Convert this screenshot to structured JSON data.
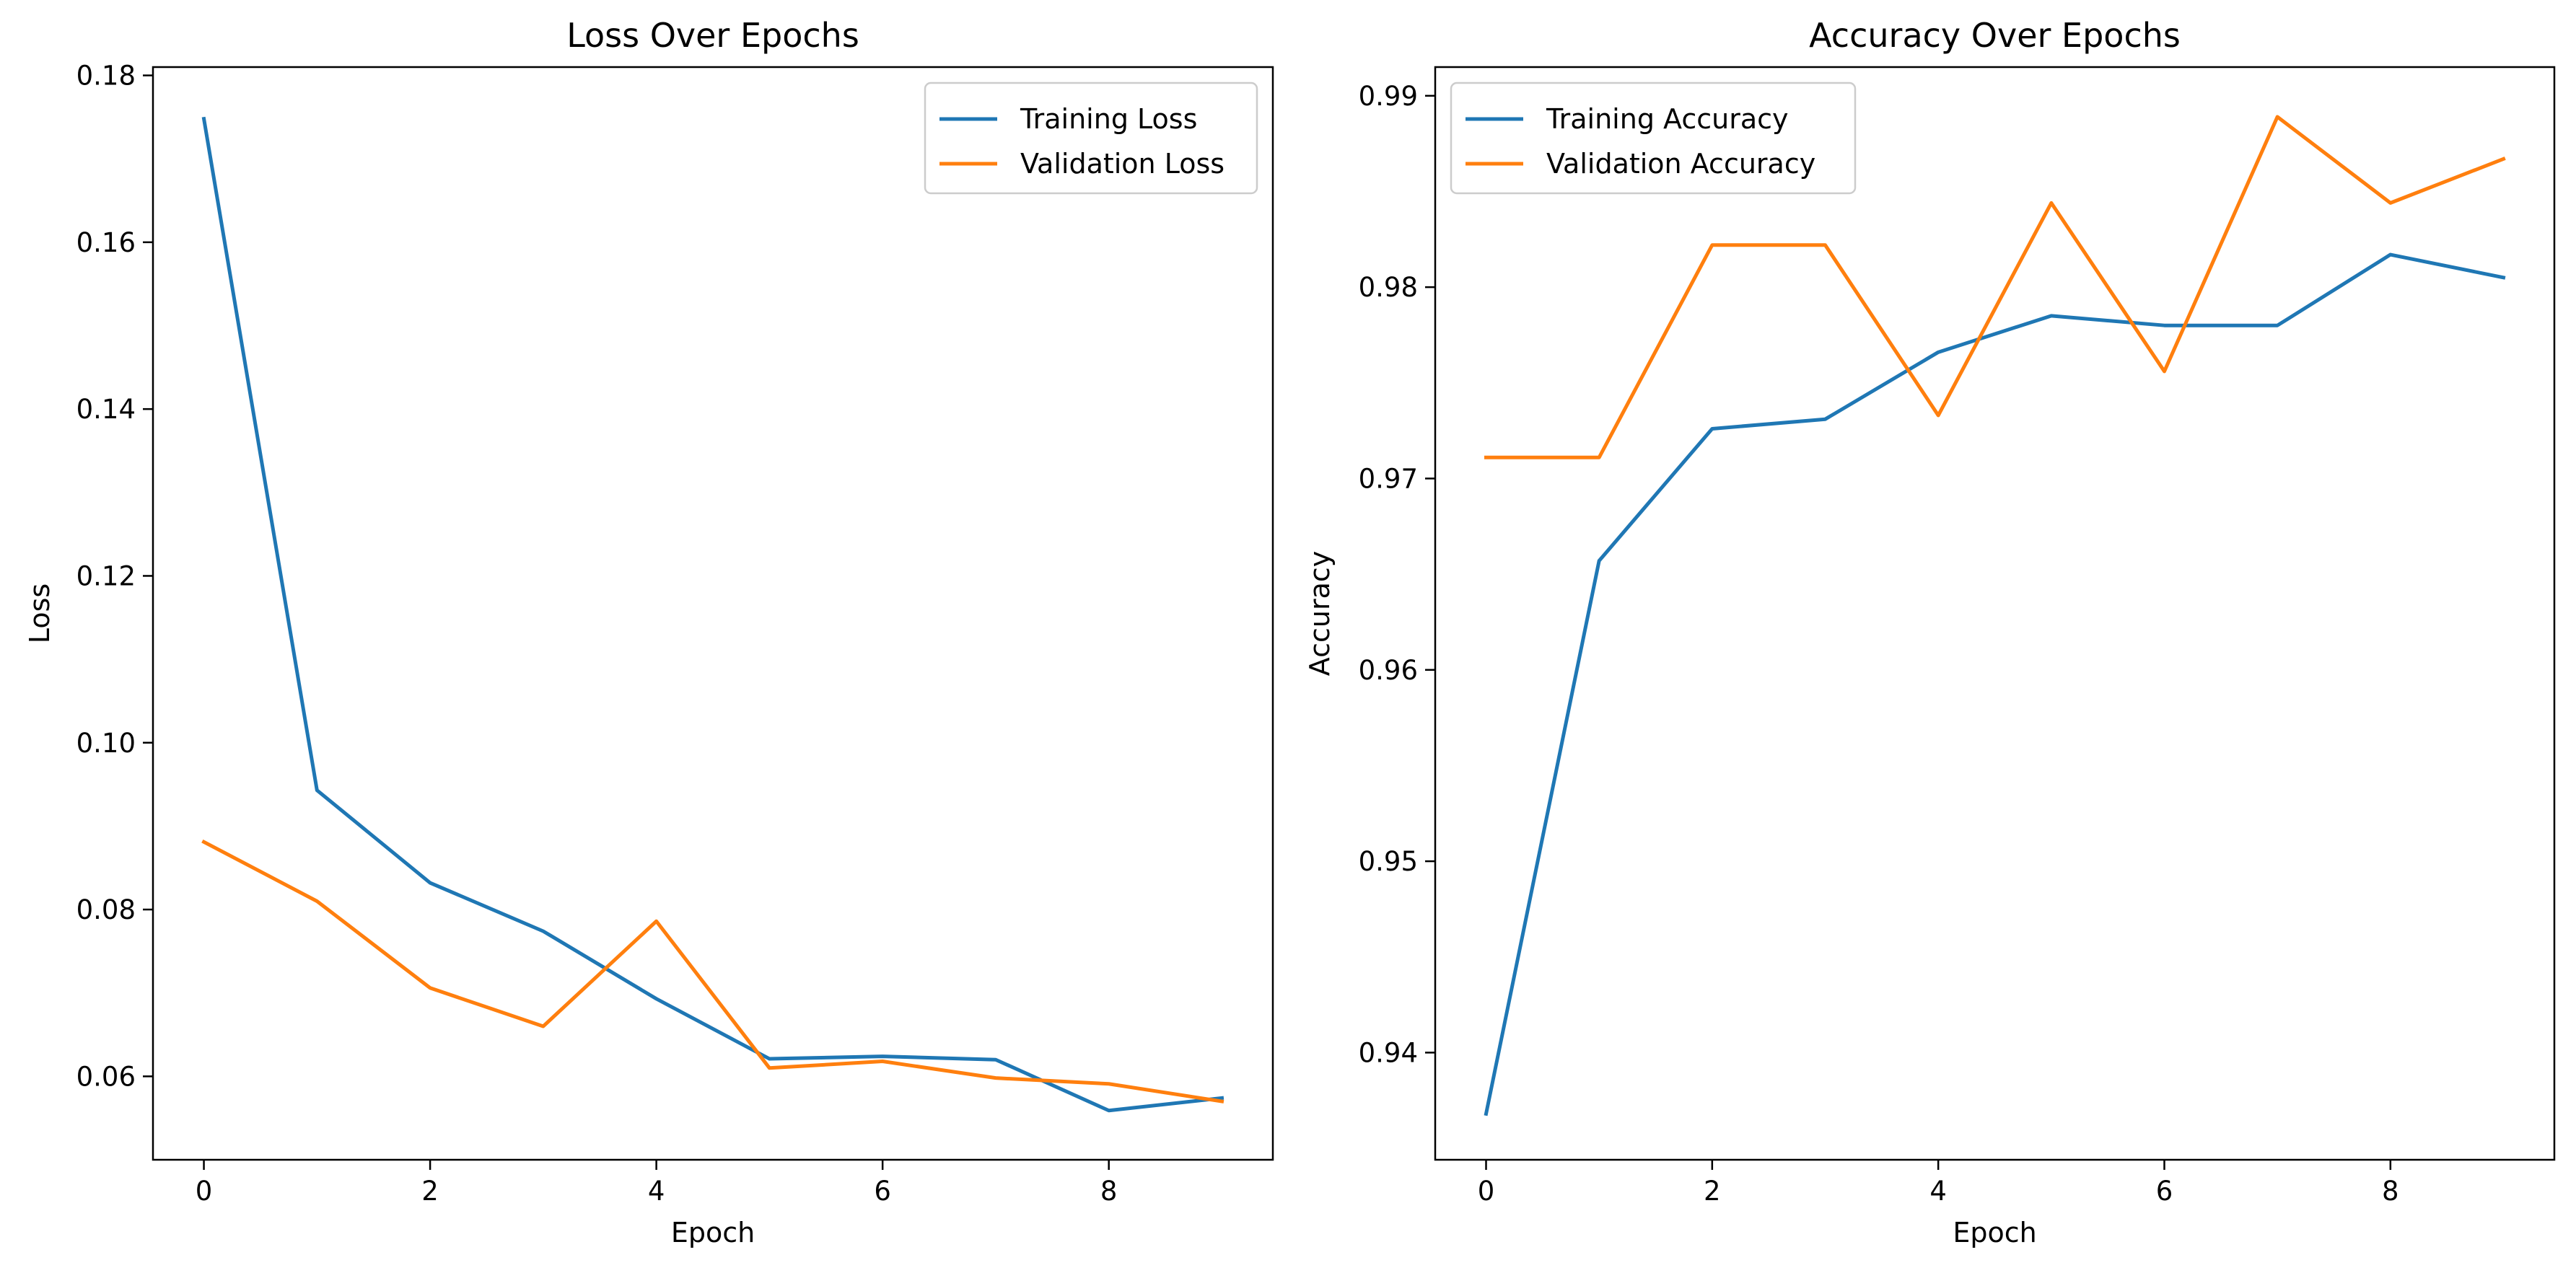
{
  "chart_data": [
    {
      "type": "line",
      "title": "Loss Over Epochs",
      "xlabel": "Epoch",
      "ylabel": "Loss",
      "xlim": [
        -0.45,
        9.45
      ],
      "ylim": [
        0.05,
        0.181
      ],
      "xticks": [
        0,
        2,
        4,
        6,
        8
      ],
      "xtick_labels": [
        "0",
        "2",
        "4",
        "6",
        "8"
      ],
      "yticks": [
        0.06,
        0.08,
        0.1,
        0.12,
        0.14,
        0.16,
        0.18
      ],
      "ytick_labels": [
        "0.06",
        "0.08",
        "0.10",
        "0.12",
        "0.14",
        "0.16",
        "0.18"
      ],
      "legend_position": "top-right",
      "grid": false,
      "x": [
        0,
        1,
        2,
        3,
        4,
        5,
        6,
        7,
        8,
        9
      ],
      "series": [
        {
          "name": "Training Loss",
          "color": "#1f77b4",
          "values": [
            0.1748,
            0.0943,
            0.0832,
            0.0774,
            0.0693,
            0.0621,
            0.0624,
            0.062,
            0.0559,
            0.0574
          ]
        },
        {
          "name": "Validation Loss",
          "color": "#ff7f0e",
          "values": [
            0.0881,
            0.081,
            0.0706,
            0.066,
            0.0786,
            0.061,
            0.0618,
            0.0598,
            0.0591,
            0.057
          ]
        }
      ]
    },
    {
      "type": "line",
      "title": "Accuracy Over Epochs",
      "xlabel": "Epoch",
      "ylabel": "Accuracy",
      "xlim": [
        -0.45,
        9.45
      ],
      "ylim": [
        0.9344,
        0.9915
      ],
      "xticks": [
        0,
        2,
        4,
        6,
        8
      ],
      "xtick_labels": [
        "0",
        "2",
        "4",
        "6",
        "8"
      ],
      "yticks": [
        0.94,
        0.95,
        0.96,
        0.97,
        0.98,
        0.99
      ],
      "ytick_labels": [
        "0.94",
        "0.95",
        "0.96",
        "0.97",
        "0.98",
        "0.99"
      ],
      "legend_position": "top-left",
      "grid": false,
      "x": [
        0,
        1,
        2,
        3,
        4,
        5,
        6,
        7,
        8,
        9
      ],
      "series": [
        {
          "name": "Training Accuracy",
          "color": "#1f77b4",
          "values": [
            0.9368,
            0.9657,
            0.9726,
            0.9731,
            0.9766,
            0.9785,
            0.978,
            0.978,
            0.9817,
            0.9805
          ]
        },
        {
          "name": "Validation Accuracy",
          "color": "#ff7f0e",
          "values": [
            0.9711,
            0.9711,
            0.9822,
            0.9822,
            0.9733,
            0.9844,
            0.9756,
            0.9889,
            0.9844,
            0.9867
          ]
        }
      ]
    }
  ]
}
